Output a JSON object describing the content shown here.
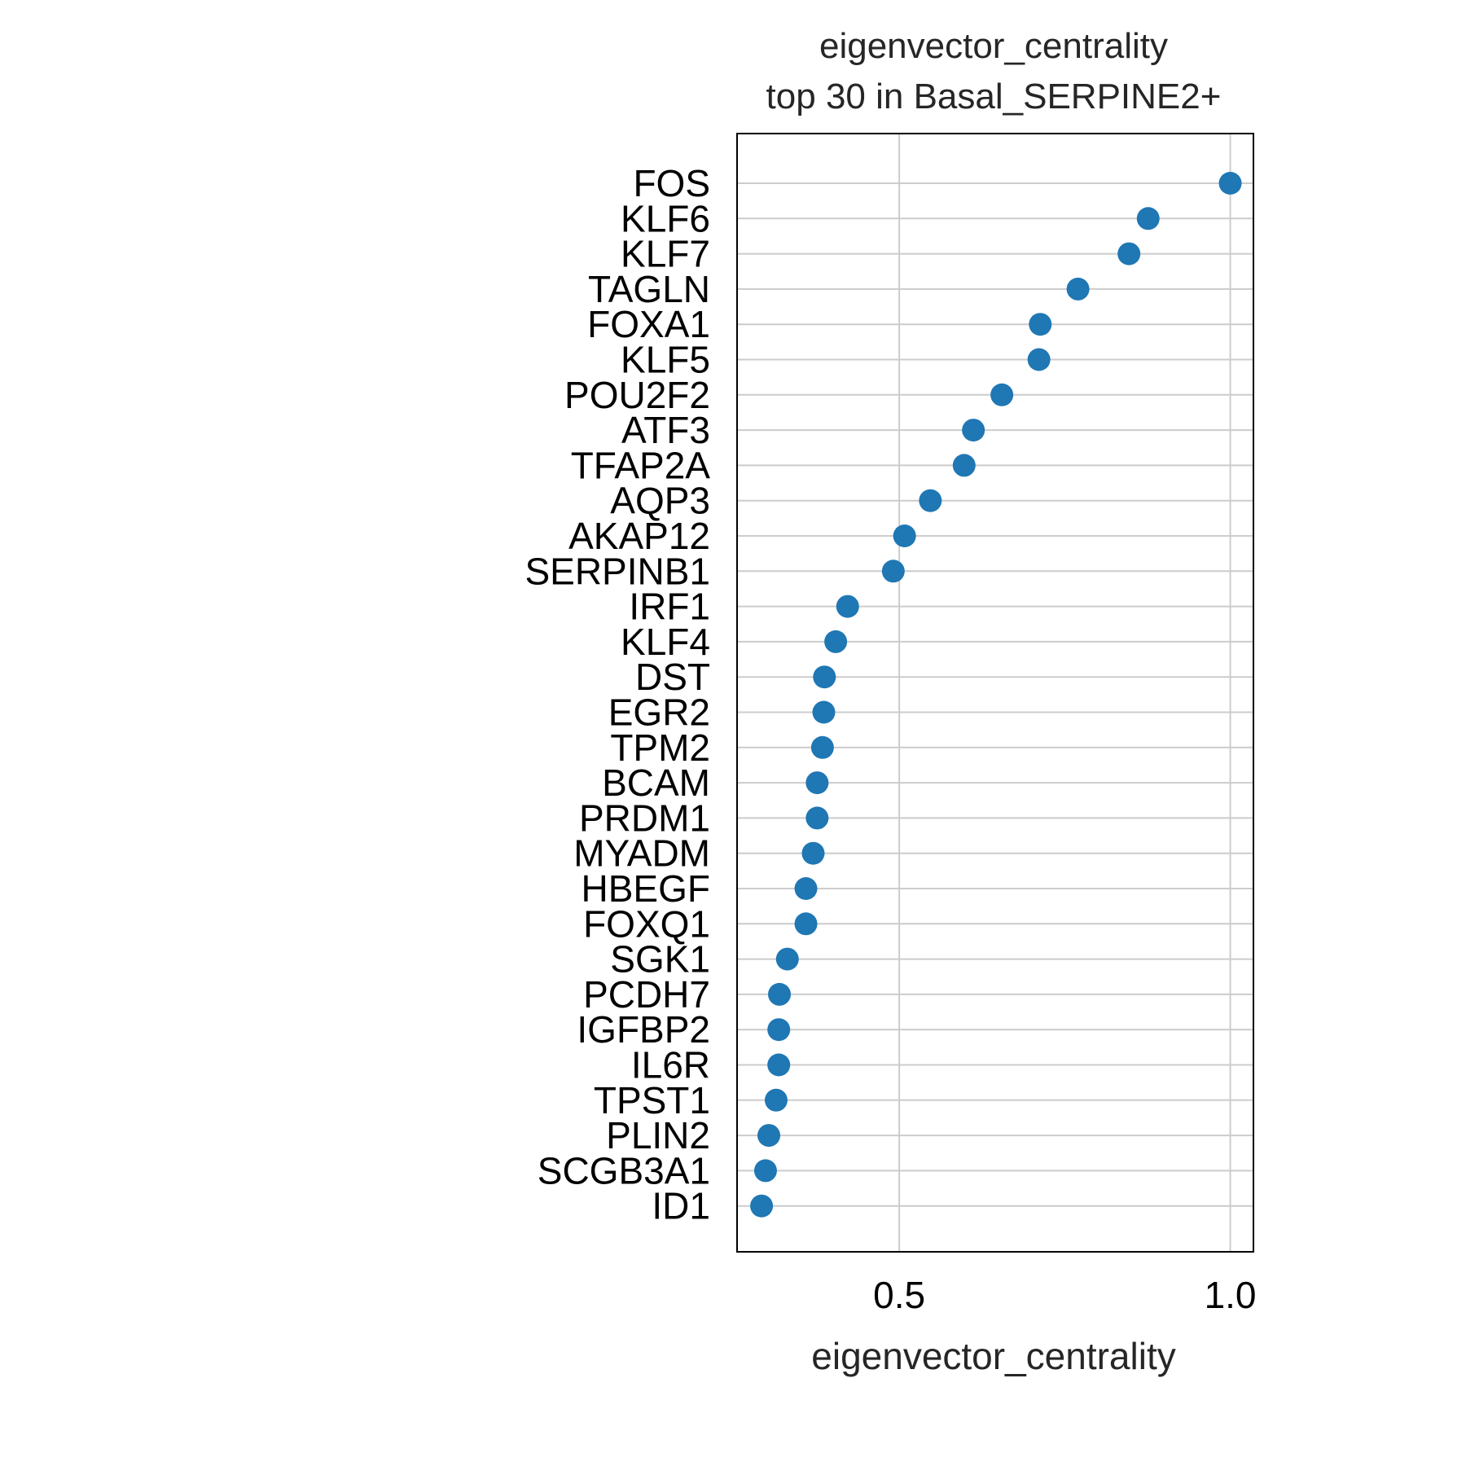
{
  "chart_data": {
    "type": "scatter",
    "title": [
      "eigenvector_centrality",
      "top 30 in Basal_SERPINE2+"
    ],
    "xlabel": "eigenvector_centrality",
    "ylabel": "",
    "xlim": [
      0.255,
      1.035
    ],
    "xticks": [
      0.5,
      1.0
    ],
    "xtick_labels": [
      "0.5",
      "1.0"
    ],
    "grid": true,
    "marker_color": "#1f77b4",
    "categories": [
      "FOS",
      "KLF6",
      "KLF7",
      "TAGLN",
      "FOXA1",
      "KLF5",
      "POU2F2",
      "ATF3",
      "TFAP2A",
      "AQP3",
      "AKAP12",
      "SERPINB1",
      "IRF1",
      "KLF4",
      "DST",
      "EGR2",
      "TPM2",
      "BCAM",
      "PRDM1",
      "MYADM",
      "HBEGF",
      "FOXQ1",
      "SGK1",
      "PCDH7",
      "IGFBP2",
      "IL6R",
      "TPST1",
      "PLIN2",
      "SCGB3A1",
      "ID1"
    ],
    "values": [
      1.0,
      0.876,
      0.847,
      0.77,
      0.713,
      0.711,
      0.655,
      0.612,
      0.598,
      0.547,
      0.508,
      0.491,
      0.422,
      0.404,
      0.387,
      0.386,
      0.384,
      0.376,
      0.376,
      0.37,
      0.359,
      0.359,
      0.331,
      0.319,
      0.318,
      0.318,
      0.314,
      0.303,
      0.298,
      0.292
    ]
  }
}
